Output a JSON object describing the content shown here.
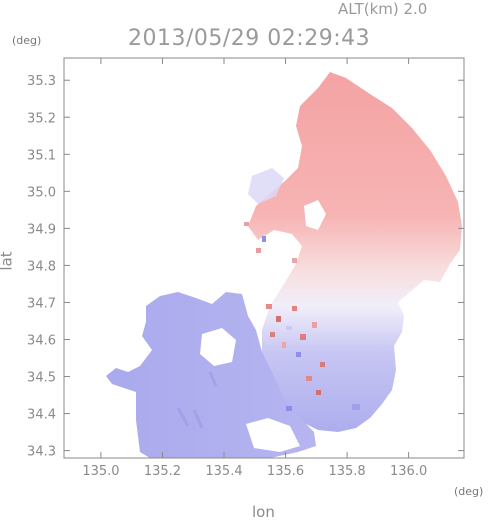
{
  "header": {
    "altitude_label": "ALT(km) 2.0",
    "timestamp": "2013/05/29 02:29:43"
  },
  "axes": {
    "y_unit": "(deg)",
    "x_unit": "(deg)",
    "y_label": "lat",
    "x_label": "lon"
  },
  "chart_data": {
    "type": "heatmap",
    "xlabel": "lon",
    "ylabel": "lat",
    "xlim": [
      134.88,
      136.18
    ],
    "ylim": [
      34.28,
      35.36
    ],
    "x_ticks": [
      "135.0",
      "135.2",
      "135.4",
      "135.6",
      "135.8",
      "136.0"
    ],
    "y_ticks": [
      "34.3",
      "34.4",
      "34.5",
      "34.6",
      "34.7",
      "34.8",
      "34.9",
      "35.0",
      "35.1",
      "35.2",
      "35.3"
    ],
    "colors": {
      "positive": "#f4a6a6",
      "negative": "#a9a9ef",
      "neutral": "#f4f2f8",
      "frame": "#8a8a8a"
    }
  }
}
